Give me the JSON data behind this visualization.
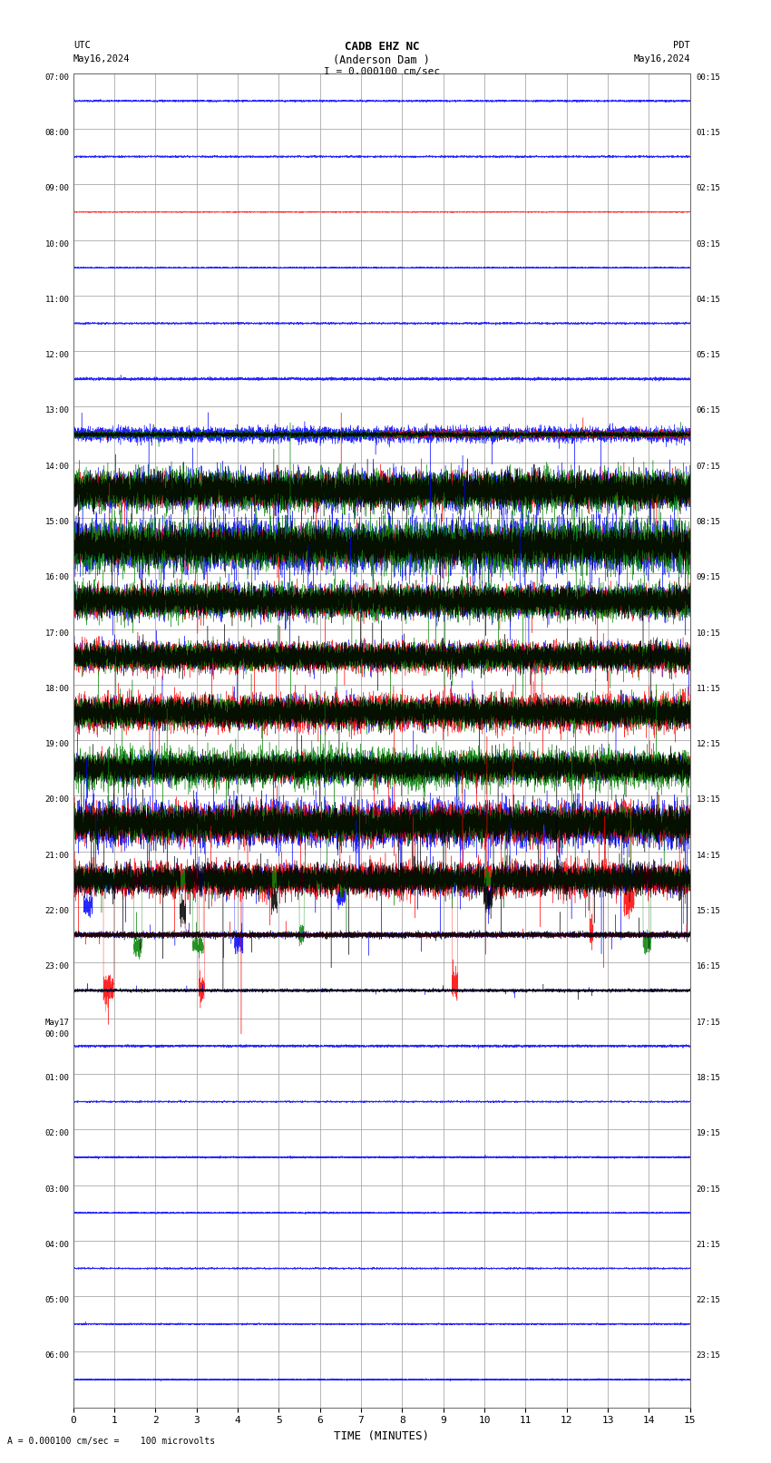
{
  "title_line1": "CADB EHZ NC",
  "title_line2": "(Anderson Dam )",
  "title_line3": "I = 0.000100 cm/sec",
  "left_label_top": "UTC",
  "left_label_date": "May16,2024",
  "right_label_top": "PDT",
  "right_label_date": "May16,2024",
  "xlabel": "TIME (MINUTES)",
  "footer": "A = 0.000100 cm/sec =    100 microvolts",
  "background_color": "#ffffff",
  "grid_color": "#999999",
  "num_rows": 24,
  "minutes_per_row": 15,
  "row_labels_utc": [
    "07:00",
    "08:00",
    "09:00",
    "10:00",
    "11:00",
    "12:00",
    "13:00",
    "14:00",
    "15:00",
    "16:00",
    "17:00",
    "18:00",
    "19:00",
    "20:00",
    "21:00",
    "22:00",
    "23:00",
    "May17\n00:00",
    "01:00",
    "02:00",
    "03:00",
    "04:00",
    "05:00",
    "06:00"
  ],
  "row_labels_pdt": [
    "00:15",
    "01:15",
    "02:15",
    "03:15",
    "04:15",
    "05:15",
    "06:15",
    "07:15",
    "08:15",
    "09:15",
    "10:15",
    "11:15",
    "12:15",
    "13:15",
    "14:15",
    "15:15",
    "16:15",
    "17:15",
    "18:15",
    "19:15",
    "20:15",
    "21:15",
    "22:15",
    "23:15"
  ],
  "colors": [
    "blue",
    "red",
    "green",
    "black"
  ],
  "fig_width": 8.5,
  "fig_height": 16.13,
  "dpi": 100
}
